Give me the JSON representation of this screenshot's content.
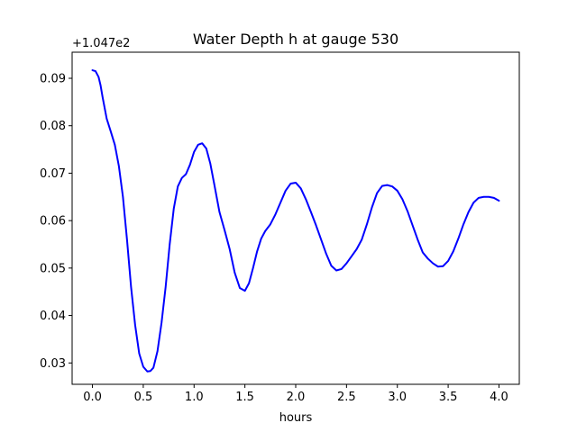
{
  "chart_data": {
    "type": "line",
    "title": "Water Depth h at gauge 530",
    "xlabel": "hours",
    "ylabel": "",
    "y_offset_label": "+1.047e2",
    "xlim": [
      -0.2,
      4.2
    ],
    "ylim": [
      0.0255,
      0.0955
    ],
    "xticks": [
      0.0,
      0.5,
      1.0,
      1.5,
      2.0,
      2.5,
      3.0,
      3.5,
      4.0
    ],
    "xtick_labels": [
      "0.0",
      "0.5",
      "1.0",
      "1.5",
      "2.0",
      "2.5",
      "3.0",
      "3.5",
      "4.0"
    ],
    "yticks": [
      0.03,
      0.04,
      0.05,
      0.06,
      0.07,
      0.08,
      0.09
    ],
    "ytick_labels": [
      "0.03",
      "0.04",
      "0.05",
      "0.06",
      "0.07",
      "0.08",
      "0.09"
    ],
    "grid": false,
    "series": [
      {
        "color": "#0000ff",
        "x": [
          0.0,
          0.03,
          0.06,
          0.08,
          0.1,
          0.14,
          0.18,
          0.22,
          0.26,
          0.3,
          0.34,
          0.38,
          0.42,
          0.46,
          0.5,
          0.54,
          0.57,
          0.6,
          0.64,
          0.68,
          0.72,
          0.76,
          0.8,
          0.84,
          0.88,
          0.92,
          0.96,
          1.0,
          1.04,
          1.08,
          1.12,
          1.16,
          1.2,
          1.25,
          1.3,
          1.35,
          1.4,
          1.45,
          1.5,
          1.54,
          1.58,
          1.62,
          1.66,
          1.7,
          1.75,
          1.8,
          1.85,
          1.9,
          1.95,
          2.0,
          2.05,
          2.1,
          2.15,
          2.2,
          2.25,
          2.3,
          2.35,
          2.4,
          2.45,
          2.5,
          2.55,
          2.6,
          2.65,
          2.7,
          2.75,
          2.8,
          2.85,
          2.9,
          2.95,
          3.0,
          3.05,
          3.1,
          3.15,
          3.2,
          3.25,
          3.3,
          3.35,
          3.4,
          3.45,
          3.5,
          3.55,
          3.6,
          3.65,
          3.7,
          3.75,
          3.8,
          3.85,
          3.9,
          3.95,
          4.0
        ],
        "y": [
          0.0917,
          0.0915,
          0.0903,
          0.0885,
          0.086,
          0.0815,
          0.0788,
          0.076,
          0.0715,
          0.065,
          0.056,
          0.046,
          0.038,
          0.032,
          0.0292,
          0.0282,
          0.0283,
          0.029,
          0.0325,
          0.0385,
          0.046,
          0.055,
          0.0625,
          0.0672,
          0.069,
          0.0698,
          0.0718,
          0.0745,
          0.076,
          0.0763,
          0.0752,
          0.072,
          0.0675,
          0.0618,
          0.058,
          0.054,
          0.049,
          0.0458,
          0.0452,
          0.0468,
          0.05,
          0.0535,
          0.0562,
          0.0578,
          0.0592,
          0.0613,
          0.0638,
          0.0663,
          0.0678,
          0.068,
          0.0668,
          0.0645,
          0.0618,
          0.059,
          0.056,
          0.053,
          0.0505,
          0.0495,
          0.0498,
          0.051,
          0.0525,
          0.054,
          0.056,
          0.0592,
          0.0628,
          0.0658,
          0.0673,
          0.0675,
          0.0672,
          0.0663,
          0.0645,
          0.062,
          0.059,
          0.056,
          0.0533,
          0.052,
          0.051,
          0.0503,
          0.0504,
          0.0515,
          0.0535,
          0.0562,
          0.0592,
          0.0618,
          0.0638,
          0.0648,
          0.065,
          0.065,
          0.0648,
          0.0642
        ]
      }
    ]
  }
}
